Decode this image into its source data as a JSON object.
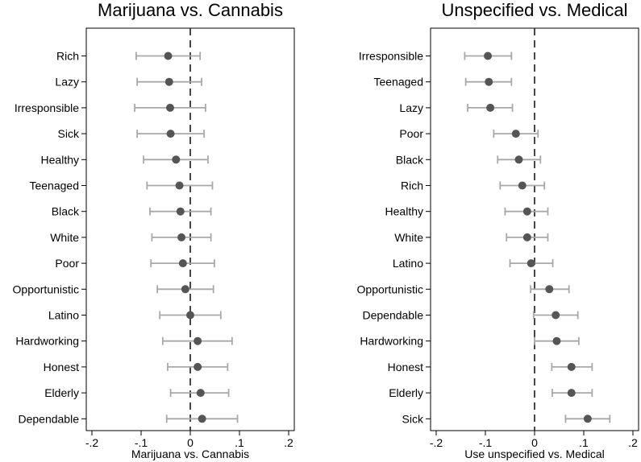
{
  "colors": {
    "point": "#555555",
    "ci": "#a8a8a8",
    "refline": "#333333",
    "axis": "#000000"
  },
  "chart_data": [
    {
      "type": "scatter",
      "title": "Marijuana vs. Cannabis",
      "xlabel": "Marijuana vs. Cannabis",
      "xlim": [
        -0.2,
        0.2
      ],
      "xticks": [
        -0.2,
        -0.1,
        0,
        0.1,
        0.2
      ],
      "xtick_labels": [
        "-.2",
        "-.1",
        "0",
        ".1",
        ".2"
      ],
      "reference_line": 0,
      "grid": false,
      "points": [
        {
          "label": "Rich",
          "estimate": -0.045,
          "lower": -0.11,
          "upper": 0.02
        },
        {
          "label": "Lazy",
          "estimate": -0.043,
          "lower": -0.108,
          "upper": 0.023
        },
        {
          "label": "Irresponsible",
          "estimate": -0.041,
          "lower": -0.113,
          "upper": 0.031
        },
        {
          "label": "Sick",
          "estimate": -0.04,
          "lower": -0.108,
          "upper": 0.028
        },
        {
          "label": "Healthy",
          "estimate": -0.029,
          "lower": -0.095,
          "upper": 0.036
        },
        {
          "label": "Teenaged",
          "estimate": -0.022,
          "lower": -0.088,
          "upper": 0.045
        },
        {
          "label": "Black",
          "estimate": -0.02,
          "lower": -0.082,
          "upper": 0.042
        },
        {
          "label": "White",
          "estimate": -0.018,
          "lower": -0.078,
          "upper": 0.042
        },
        {
          "label": "Poor",
          "estimate": -0.015,
          "lower": -0.08,
          "upper": 0.049
        },
        {
          "label": "Opportunistic",
          "estimate": -0.01,
          "lower": -0.067,
          "upper": 0.047
        },
        {
          "label": "Latino",
          "estimate": 0.0,
          "lower": -0.062,
          "upper": 0.062
        },
        {
          "label": "Hardworking",
          "estimate": 0.015,
          "lower": -0.056,
          "upper": 0.085
        },
        {
          "label": "Honest",
          "estimate": 0.015,
          "lower": -0.046,
          "upper": 0.076
        },
        {
          "label": "Elderly",
          "estimate": 0.021,
          "lower": -0.04,
          "upper": 0.078
        },
        {
          "label": "Dependable",
          "estimate": 0.024,
          "lower": -0.048,
          "upper": 0.096
        }
      ]
    },
    {
      "type": "scatter",
      "title": "Unspecified vs. Medical",
      "xlabel": "Use unspecified vs. Medical",
      "xlim": [
        -0.2,
        0.2
      ],
      "xticks": [
        -0.2,
        -0.1,
        0,
        0.1,
        0.2
      ],
      "xtick_labels": [
        "-.2",
        "-.1",
        "0",
        ".1",
        ".2"
      ],
      "reference_line": 0,
      "grid": false,
      "points": [
        {
          "label": "Irresponsible",
          "estimate": -0.095,
          "lower": -0.142,
          "upper": -0.047
        },
        {
          "label": "Teenaged",
          "estimate": -0.093,
          "lower": -0.14,
          "upper": -0.047
        },
        {
          "label": "Lazy",
          "estimate": -0.09,
          "lower": -0.136,
          "upper": -0.045
        },
        {
          "label": "Poor",
          "estimate": -0.038,
          "lower": -0.083,
          "upper": 0.007
        },
        {
          "label": "Black",
          "estimate": -0.032,
          "lower": -0.075,
          "upper": 0.012
        },
        {
          "label": "Rich",
          "estimate": -0.025,
          "lower": -0.07,
          "upper": 0.02
        },
        {
          "label": "Healthy",
          "estimate": -0.015,
          "lower": -0.06,
          "upper": 0.027
        },
        {
          "label": "White",
          "estimate": -0.015,
          "lower": -0.057,
          "upper": 0.027
        },
        {
          "label": "Latino",
          "estimate": -0.007,
          "lower": -0.05,
          "upper": 0.037
        },
        {
          "label": "Opportunistic",
          "estimate": 0.03,
          "lower": -0.008,
          "upper": 0.07
        },
        {
          "label": "Dependable",
          "estimate": 0.043,
          "lower": -0.002,
          "upper": 0.088
        },
        {
          "label": "Hardworking",
          "estimate": 0.045,
          "lower": 0.0,
          "upper": 0.09
        },
        {
          "label": "Honest",
          "estimate": 0.075,
          "lower": 0.035,
          "upper": 0.117
        },
        {
          "label": "Elderly",
          "estimate": 0.075,
          "lower": 0.036,
          "upper": 0.117
        },
        {
          "label": "Sick",
          "estimate": 0.108,
          "lower": 0.063,
          "upper": 0.153
        }
      ]
    }
  ]
}
